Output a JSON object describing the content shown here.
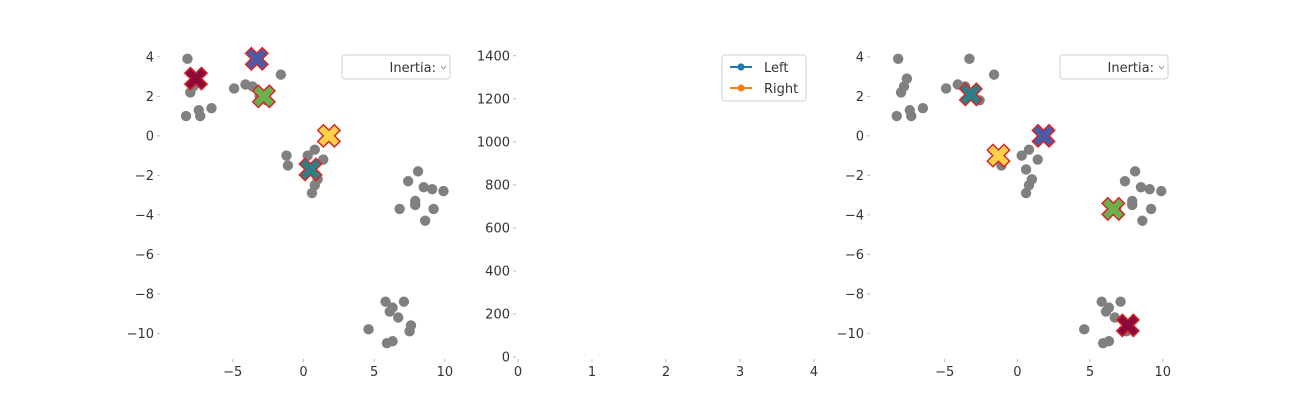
{
  "chart_data": [
    {
      "type": "scatter",
      "title": "",
      "xlabel": "",
      "ylabel": "",
      "xlim": [
        -10,
        10.5
      ],
      "ylim": [
        -11.2,
        4.6
      ],
      "xticks": [
        -5,
        0,
        5,
        10
      ],
      "yticks": [
        4,
        2,
        0,
        -2,
        -4,
        -6,
        -8,
        -10
      ],
      "x_tick_labels": [
        "−5",
        "0",
        "5",
        "10"
      ],
      "y_tick_labels": [
        "4",
        "2",
        "0",
        "−2",
        "−4",
        "−6",
        "−8",
        "−10"
      ],
      "legend": {
        "position": "top-right",
        "label": "Inertia:",
        "value": ""
      },
      "points": [
        {
          "x": -8.2,
          "y": 3.9
        },
        {
          "x": -8.0,
          "y": 2.2
        },
        {
          "x": -7.8,
          "y": 2.5
        },
        {
          "x": -7.6,
          "y": 2.9
        },
        {
          "x": -8.3,
          "y": 1.0
        },
        {
          "x": -7.4,
          "y": 1.3
        },
        {
          "x": -7.3,
          "y": 1.0
        },
        {
          "x": -6.5,
          "y": 1.4
        },
        {
          "x": -4.9,
          "y": 2.4
        },
        {
          "x": -4.1,
          "y": 2.6
        },
        {
          "x": -3.6,
          "y": 2.5
        },
        {
          "x": -3.1,
          "y": 2.0
        },
        {
          "x": -2.6,
          "y": 1.8
        },
        {
          "x": -3.3,
          "y": 3.9
        },
        {
          "x": -1.6,
          "y": 3.1
        },
        {
          "x": -1.2,
          "y": -1.0
        },
        {
          "x": -1.1,
          "y": -1.5
        },
        {
          "x": 0.3,
          "y": -1.0
        },
        {
          "x": 0.8,
          "y": -0.7
        },
        {
          "x": 1.4,
          "y": -1.2
        },
        {
          "x": 0.6,
          "y": -1.7
        },
        {
          "x": 1.0,
          "y": -2.2
        },
        {
          "x": 0.8,
          "y": -2.5
        },
        {
          "x": 0.6,
          "y": -2.9
        },
        {
          "x": 7.4,
          "y": -2.3
        },
        {
          "x": 8.1,
          "y": -1.8
        },
        {
          "x": 8.5,
          "y": -2.6
        },
        {
          "x": 9.1,
          "y": -2.7
        },
        {
          "x": 9.9,
          "y": -2.8
        },
        {
          "x": 7.9,
          "y": -3.3
        },
        {
          "x": 7.9,
          "y": -3.5
        },
        {
          "x": 6.8,
          "y": -3.7
        },
        {
          "x": 9.2,
          "y": -3.7
        },
        {
          "x": 8.6,
          "y": -4.3
        },
        {
          "x": 5.8,
          "y": -8.4
        },
        {
          "x": 6.3,
          "y": -8.7
        },
        {
          "x": 6.1,
          "y": -8.9
        },
        {
          "x": 7.1,
          "y": -8.4
        },
        {
          "x": 6.7,
          "y": -9.2
        },
        {
          "x": 7.6,
          "y": -9.6
        },
        {
          "x": 7.5,
          "y": -9.9
        },
        {
          "x": 4.6,
          "y": -9.8
        },
        {
          "x": 6.3,
          "y": -10.4
        },
        {
          "x": 5.9,
          "y": -10.5
        }
      ],
      "centroids": [
        {
          "x": -7.6,
          "y": 2.9,
          "color": "#8b0a3a"
        },
        {
          "x": -3.3,
          "y": 3.9,
          "color": "#4d5aa6"
        },
        {
          "x": -2.8,
          "y": 2.0,
          "color": "#6ab04c"
        },
        {
          "x": 1.8,
          "y": 0.0,
          "color": "#ffd24a"
        },
        {
          "x": 0.5,
          "y": -1.7,
          "color": "#2e7e86"
        }
      ]
    },
    {
      "type": "line",
      "title": "",
      "xlabel": "",
      "ylabel": "",
      "xlim": [
        0,
        4
      ],
      "ylim": [
        0,
        1450
      ],
      "xticks": [
        0,
        1,
        2,
        3,
        4
      ],
      "yticks": [
        0,
        200,
        400,
        600,
        800,
        1000,
        1200,
        1400
      ],
      "x_tick_labels": [
        "0",
        "1",
        "2",
        "3",
        "4"
      ],
      "y_tick_labels": [
        "0",
        "200",
        "400",
        "600",
        "800",
        "1000",
        "1200",
        "1400"
      ],
      "legend": {
        "position": "top-right"
      },
      "series": [
        {
          "name": "Left",
          "color": "#1f77b4",
          "values": []
        },
        {
          "name": "Right",
          "color": "#ff7f0e",
          "values": []
        }
      ]
    },
    {
      "type": "scatter",
      "title": "",
      "xlabel": "",
      "ylabel": "",
      "xlim": [
        -10,
        10.5
      ],
      "ylim": [
        -11.2,
        4.6
      ],
      "xticks": [
        -5,
        0,
        5,
        10
      ],
      "yticks": [
        4,
        2,
        0,
        -2,
        -4,
        -6,
        -8,
        -10
      ],
      "x_tick_labels": [
        "−5",
        "0",
        "5",
        "10"
      ],
      "y_tick_labels": [
        "4",
        "2",
        "0",
        "−2",
        "−4",
        "−6",
        "−8",
        "−10"
      ],
      "legend": {
        "position": "top-right",
        "label": "Inertia:",
        "value": ""
      },
      "points": [
        {
          "x": -8.2,
          "y": 3.9
        },
        {
          "x": -8.0,
          "y": 2.2
        },
        {
          "x": -7.8,
          "y": 2.5
        },
        {
          "x": -7.6,
          "y": 2.9
        },
        {
          "x": -8.3,
          "y": 1.0
        },
        {
          "x": -7.4,
          "y": 1.3
        },
        {
          "x": -7.3,
          "y": 1.0
        },
        {
          "x": -6.5,
          "y": 1.4
        },
        {
          "x": -4.9,
          "y": 2.4
        },
        {
          "x": -4.1,
          "y": 2.6
        },
        {
          "x": -3.6,
          "y": 2.5
        },
        {
          "x": -3.1,
          "y": 2.0
        },
        {
          "x": -2.6,
          "y": 1.8
        },
        {
          "x": -3.3,
          "y": 3.9
        },
        {
          "x": -1.6,
          "y": 3.1
        },
        {
          "x": -1.2,
          "y": -1.0
        },
        {
          "x": -1.1,
          "y": -1.5
        },
        {
          "x": 0.3,
          "y": -1.0
        },
        {
          "x": 0.8,
          "y": -0.7
        },
        {
          "x": 1.4,
          "y": -1.2
        },
        {
          "x": 0.6,
          "y": -1.7
        },
        {
          "x": 1.0,
          "y": -2.2
        },
        {
          "x": 0.8,
          "y": -2.5
        },
        {
          "x": 0.6,
          "y": -2.9
        },
        {
          "x": 7.4,
          "y": -2.3
        },
        {
          "x": 8.1,
          "y": -1.8
        },
        {
          "x": 8.5,
          "y": -2.6
        },
        {
          "x": 9.1,
          "y": -2.7
        },
        {
          "x": 9.9,
          "y": -2.8
        },
        {
          "x": 7.9,
          "y": -3.3
        },
        {
          "x": 7.9,
          "y": -3.5
        },
        {
          "x": 6.8,
          "y": -3.7
        },
        {
          "x": 9.2,
          "y": -3.7
        },
        {
          "x": 8.6,
          "y": -4.3
        },
        {
          "x": 5.8,
          "y": -8.4
        },
        {
          "x": 6.3,
          "y": -8.7
        },
        {
          "x": 6.1,
          "y": -8.9
        },
        {
          "x": 7.1,
          "y": -8.4
        },
        {
          "x": 6.7,
          "y": -9.2
        },
        {
          "x": 7.6,
          "y": -9.6
        },
        {
          "x": 7.5,
          "y": -9.9
        },
        {
          "x": 4.6,
          "y": -9.8
        },
        {
          "x": 6.3,
          "y": -10.4
        },
        {
          "x": 5.9,
          "y": -10.5
        }
      ],
      "centroids": [
        {
          "x": -3.2,
          "y": 2.1,
          "color": "#2e7e86"
        },
        {
          "x": 1.8,
          "y": 0.0,
          "color": "#4d5aa6"
        },
        {
          "x": -1.3,
          "y": -1.0,
          "color": "#ffd24a"
        },
        {
          "x": 6.6,
          "y": -3.7,
          "color": "#6ab04c"
        },
        {
          "x": 7.6,
          "y": -9.6,
          "color": "#8b0a3a"
        }
      ]
    }
  ]
}
